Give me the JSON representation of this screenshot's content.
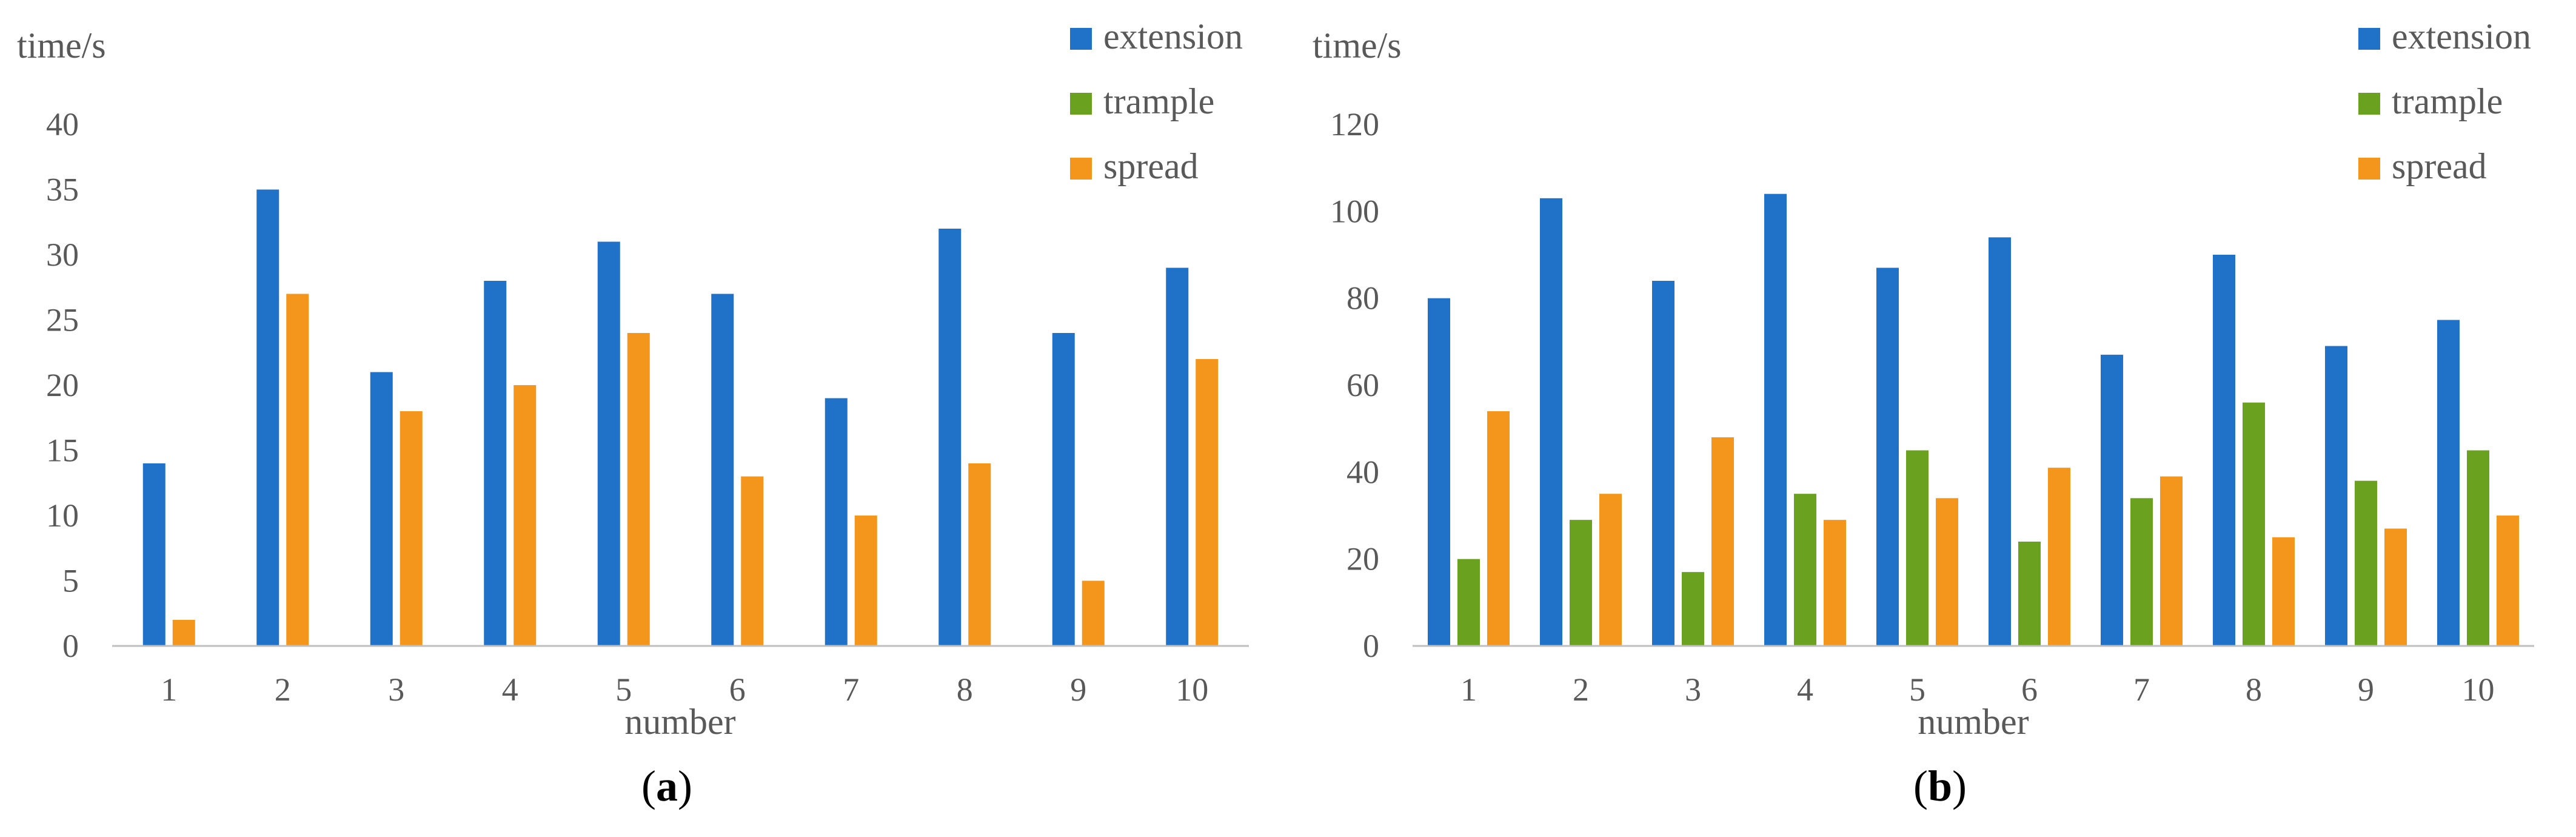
{
  "chart_data": [
    {
      "type": "bar",
      "panel_label": {
        "open": "(",
        "letter": "a",
        "close": ")"
      },
      "ylabel": "time/s",
      "xlabel": "number",
      "ylim": [
        0,
        40
      ],
      "yticks": [
        "0",
        "5",
        "10",
        "15",
        "20",
        "25",
        "30",
        "35",
        "40"
      ],
      "categories": [
        "1",
        "2",
        "3",
        "4",
        "5",
        "6",
        "7",
        "8",
        "9",
        "10"
      ],
      "legend": [
        "extension",
        "trample",
        "spread"
      ],
      "legend_position": "top-right",
      "series": [
        {
          "name": "extension",
          "color": "#1f72c8",
          "values": [
            14,
            35,
            21,
            28,
            31,
            27,
            19,
            32,
            24,
            29
          ]
        },
        {
          "name": "trample",
          "color": "#6aa11e",
          "values": [
            0,
            0,
            0,
            0,
            0,
            0,
            0,
            0,
            0,
            0
          ]
        },
        {
          "name": "spread",
          "color": "#f4951c",
          "values": [
            2,
            27,
            18,
            20,
            24,
            13,
            10,
            14,
            5,
            22
          ]
        }
      ]
    },
    {
      "type": "bar",
      "panel_label": {
        "open": "(",
        "letter": "b",
        "close": ")"
      },
      "ylabel": "time/s",
      "xlabel": "number",
      "ylim": [
        0,
        120
      ],
      "yticks": [
        "0",
        "20",
        "40",
        "60",
        "80",
        "100",
        "120"
      ],
      "categories": [
        "1",
        "2",
        "3",
        "4",
        "5",
        "6",
        "7",
        "8",
        "9",
        "10"
      ],
      "legend": [
        "extension",
        "trample",
        "spread"
      ],
      "legend_position": "top-right",
      "series": [
        {
          "name": "extension",
          "color": "#1f72c8",
          "values": [
            80,
            103,
            84,
            104,
            87,
            94,
            67,
            90,
            69,
            75
          ]
        },
        {
          "name": "trample",
          "color": "#6aa11e",
          "values": [
            20,
            29,
            17,
            35,
            45,
            24,
            34,
            56,
            38,
            45
          ]
        },
        {
          "name": "spread",
          "color": "#f4951c",
          "values": [
            54,
            35,
            48,
            29,
            34,
            41,
            39,
            25,
            27,
            30
          ]
        }
      ]
    }
  ]
}
